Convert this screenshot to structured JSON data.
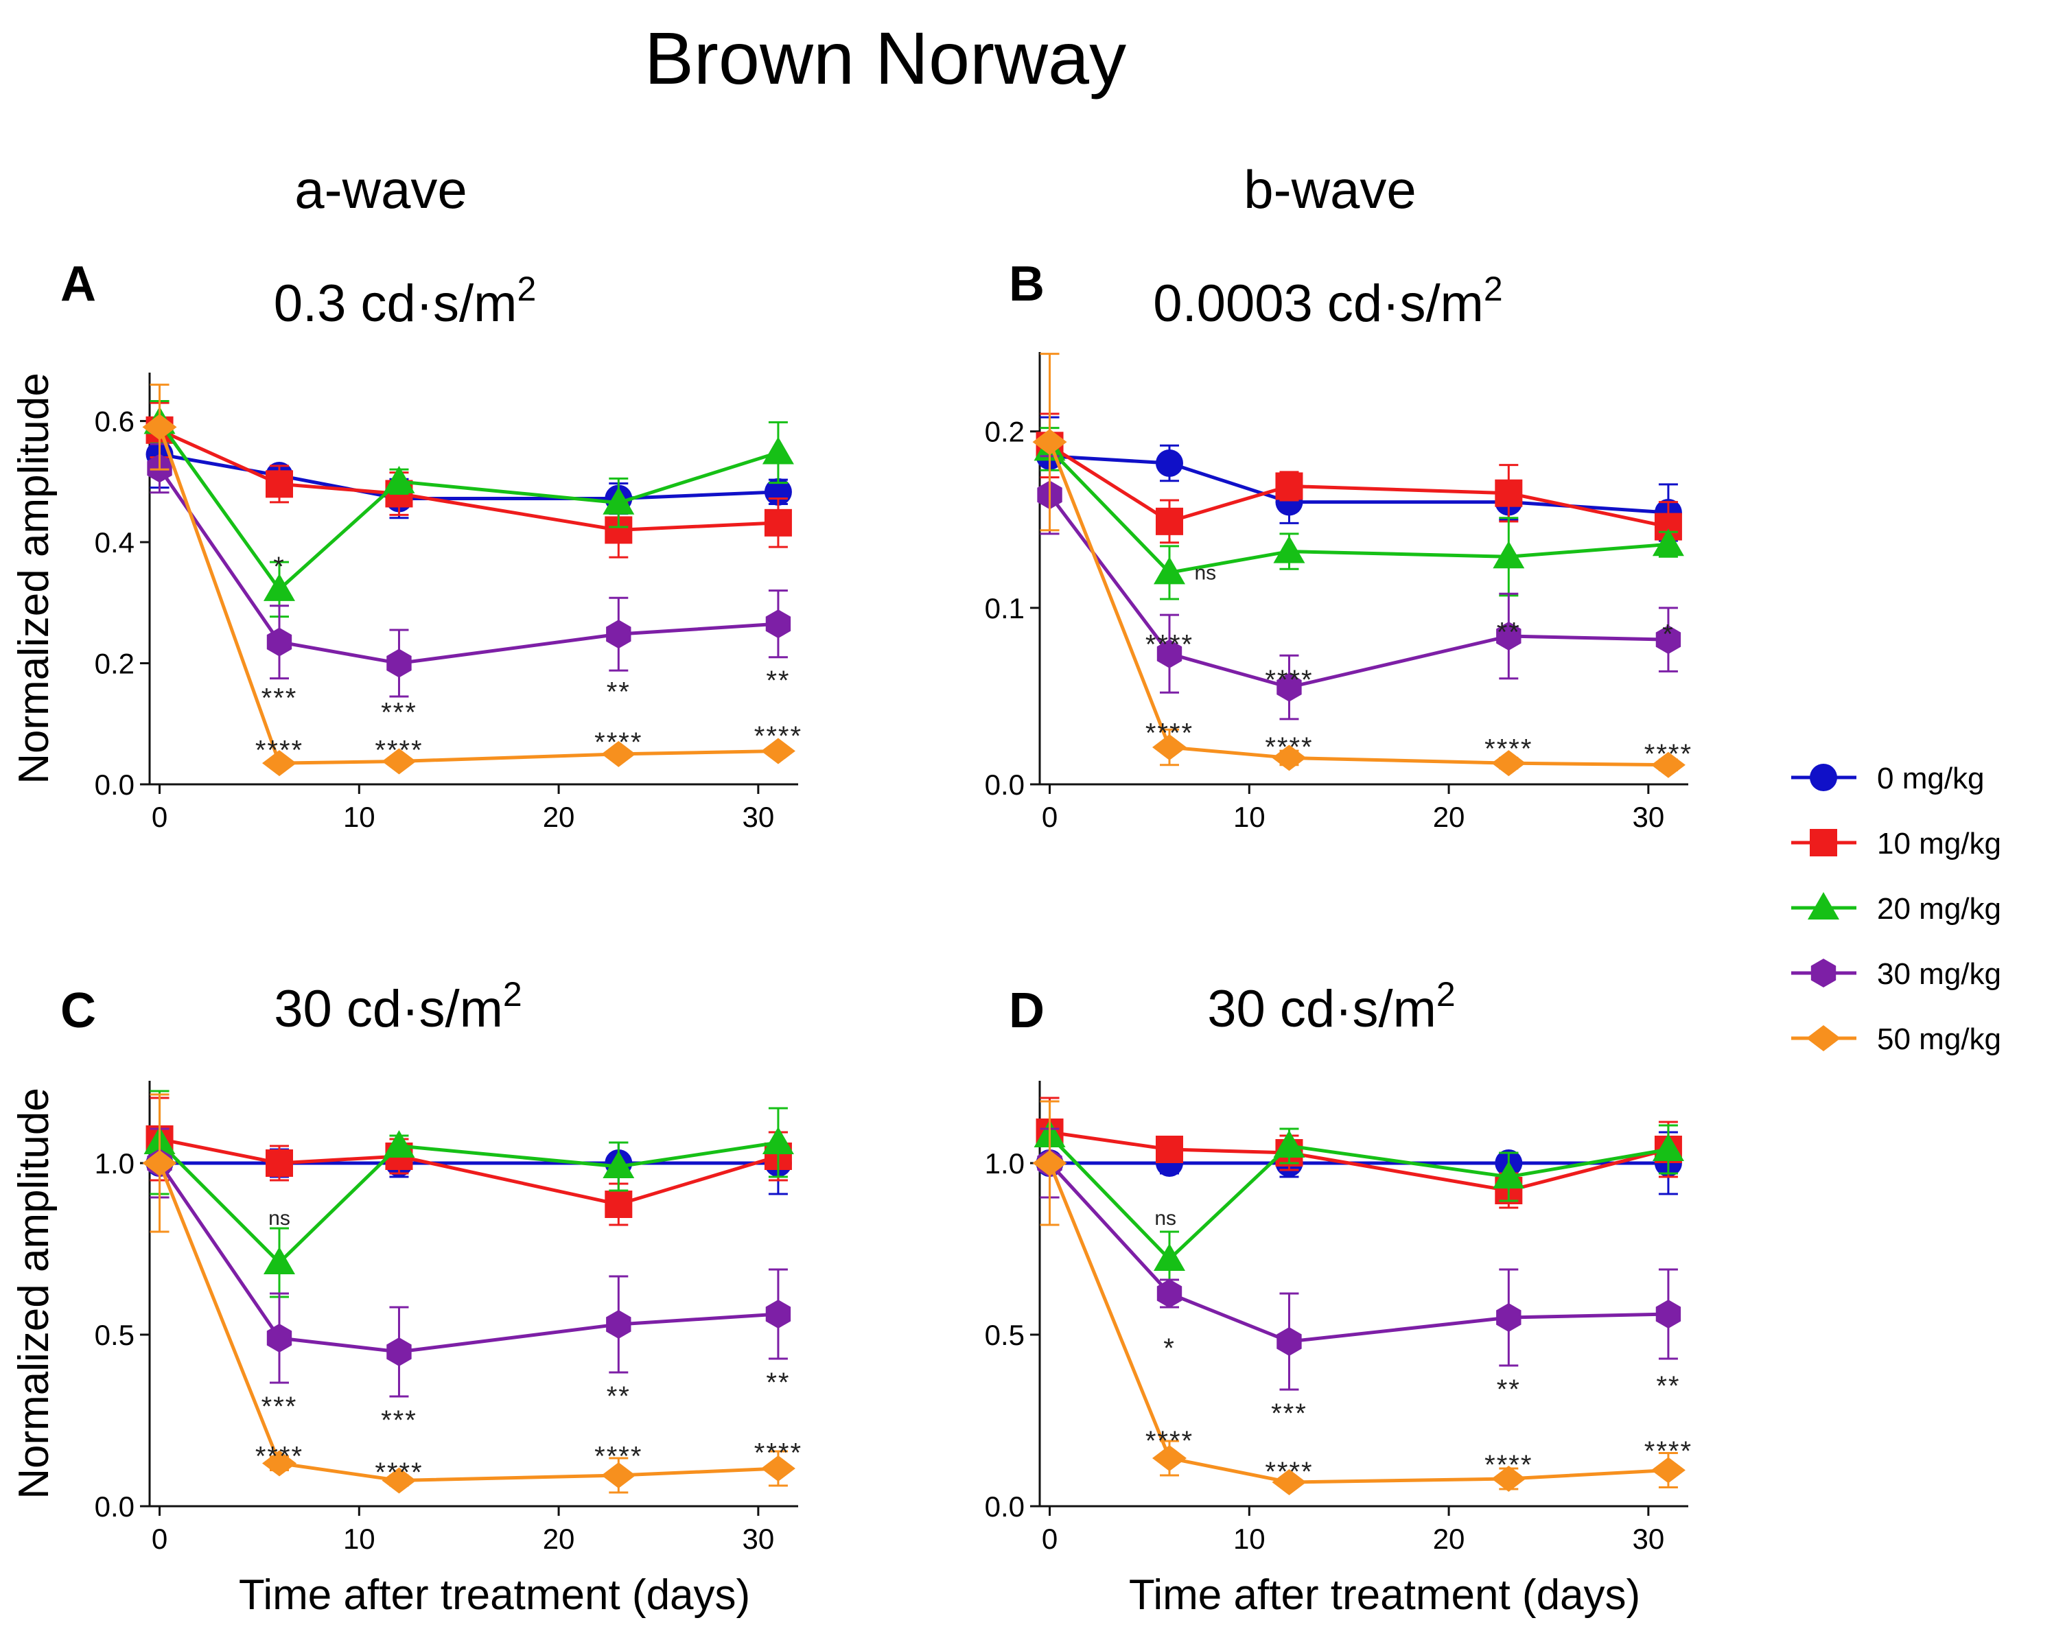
{
  "figure": {
    "title": "Brown Norway",
    "col_titles": [
      "a-wave",
      "b-wave"
    ]
  },
  "legend": {
    "items": [
      {
        "label": "0 mg/kg",
        "color": "#1010c8",
        "marker": "circle"
      },
      {
        "label": "10 mg/kg",
        "color": "#ee1c1c",
        "marker": "square"
      },
      {
        "label": "20 mg/kg",
        "color": "#16c016",
        "marker": "triangle"
      },
      {
        "label": "30 mg/kg",
        "color": "#7d1fa6",
        "marker": "hexagon"
      },
      {
        "label": "50 mg/kg",
        "color": "#f7901e",
        "marker": "diamond"
      }
    ]
  },
  "chart_data": [
    {
      "id": "A",
      "type": "line",
      "title": "0.3 cd·s/m",
      "title_sup": "2",
      "xlabel": "",
      "ylabel": "Normalized amplitude",
      "xlim": [
        -0.5,
        32
      ],
      "ylim": [
        0,
        0.68
      ],
      "xticks": [
        0,
        10,
        20,
        30
      ],
      "yticks": [
        0.0,
        0.2,
        0.4,
        0.6
      ],
      "ytick_labels": [
        "0.0",
        "0.2",
        "0.4",
        "0.6"
      ],
      "x": [
        0,
        6,
        12,
        23,
        31
      ],
      "series": [
        {
          "name": "0 mg/kg",
          "values": [
            0.545,
            0.51,
            0.472,
            0.472,
            0.483
          ],
          "err": [
            0.055,
            0.012,
            0.032,
            0.025,
            0.02
          ]
        },
        {
          "name": "10 mg/kg",
          "values": [
            0.585,
            0.496,
            0.48,
            0.42,
            0.432
          ],
          "err": [
            0.045,
            0.03,
            0.035,
            0.045,
            0.04
          ]
        },
        {
          "name": "20 mg/kg",
          "values": [
            0.598,
            0.322,
            0.5,
            0.465,
            0.548
          ],
          "err": [
            0.035,
            0.045,
            0.02,
            0.04,
            0.05
          ]
        },
        {
          "name": "30 mg/kg",
          "values": [
            0.522,
            0.235,
            0.2,
            0.248,
            0.265
          ],
          "err": [
            0.04,
            0.06,
            0.055,
            0.06,
            0.055
          ]
        },
        {
          "name": "50 mg/kg",
          "values": [
            0.59,
            0.035,
            0.038,
            0.05,
            0.055
          ],
          "err": [
            0.07,
            0.006,
            0.006,
            0.006,
            0.006
          ]
        }
      ],
      "annotations": [
        {
          "x": 6,
          "y": 0.365,
          "text": "*",
          "color": "#222"
        },
        {
          "x": 6,
          "y": 0.148,
          "text": "***",
          "color": "#222"
        },
        {
          "x": 12,
          "y": 0.124,
          "text": "***",
          "color": "#222"
        },
        {
          "x": 23,
          "y": 0.158,
          "text": "**",
          "color": "#222"
        },
        {
          "x": 31,
          "y": 0.177,
          "text": "**",
          "color": "#222"
        },
        {
          "x": 6,
          "y": 0.062,
          "text": "****",
          "color": "#222"
        },
        {
          "x": 12,
          "y": 0.062,
          "text": "****",
          "color": "#222"
        },
        {
          "x": 23,
          "y": 0.075,
          "text": "****",
          "color": "#222"
        },
        {
          "x": 31,
          "y": 0.085,
          "text": "****",
          "color": "#222"
        }
      ]
    },
    {
      "id": "B",
      "type": "line",
      "title": "0.0003 cd·s/m",
      "title_sup": "2",
      "xlabel": "",
      "ylabel": "",
      "xlim": [
        -0.5,
        32
      ],
      "ylim": [
        0,
        0.245
      ],
      "xticks": [
        0,
        10,
        20,
        30
      ],
      "yticks": [
        0.0,
        0.1,
        0.2
      ],
      "ytick_labels": [
        "0.0",
        "0.1",
        "0.2"
      ],
      "x": [
        0,
        6,
        12,
        23,
        31
      ],
      "series": [
        {
          "name": "0 mg/kg",
          "values": [
            0.186,
            0.182,
            0.16,
            0.16,
            0.154
          ],
          "err": [
            0.022,
            0.01,
            0.012,
            0.01,
            0.016
          ]
        },
        {
          "name": "10 mg/kg",
          "values": [
            0.192,
            0.149,
            0.169,
            0.165,
            0.146
          ],
          "err": [
            0.018,
            0.012,
            0.008,
            0.016,
            0.014
          ]
        },
        {
          "name": "20 mg/kg",
          "values": [
            0.19,
            0.12,
            0.132,
            0.129,
            0.136
          ],
          "err": [
            0.012,
            0.015,
            0.01,
            0.022,
            0.007
          ]
        },
        {
          "name": "30 mg/kg",
          "values": [
            0.164,
            0.074,
            0.055,
            0.084,
            0.082
          ],
          "err": [
            0.022,
            0.022,
            0.018,
            0.024,
            0.018
          ]
        },
        {
          "name": "50 mg/kg",
          "values": [
            0.194,
            0.021,
            0.015,
            0.012,
            0.011
          ],
          "err": [
            0.05,
            0.01,
            0.004,
            0.003,
            0.003
          ]
        }
      ],
      "annotations": [
        {
          "x": 7.8,
          "y": 0.116,
          "text": "ns",
          "color": "#222"
        },
        {
          "x": 6,
          "y": 0.081,
          "text": "****",
          "color": "#222"
        },
        {
          "x": 12,
          "y": 0.061,
          "text": "****",
          "color": "#222"
        },
        {
          "x": 23,
          "y": 0.088,
          "text": "**",
          "color": "#222"
        },
        {
          "x": 31,
          "y": 0.087,
          "text": "*",
          "color": "#222"
        },
        {
          "x": 6,
          "y": 0.031,
          "text": "****",
          "color": "#222"
        },
        {
          "x": 12,
          "y": 0.023,
          "text": "****",
          "color": "#222"
        },
        {
          "x": 23,
          "y": 0.022,
          "text": "****",
          "color": "#222"
        },
        {
          "x": 31,
          "y": 0.019,
          "text": "****",
          "color": "#222"
        }
      ]
    },
    {
      "id": "C",
      "type": "line",
      "title": "30 cd·s/m",
      "title_sup": "2",
      "xlabel": "Time after treatment (days)",
      "ylabel": "Normalized amplitude",
      "xlim": [
        -0.5,
        32
      ],
      "ylim": [
        0,
        1.24
      ],
      "xticks": [
        0,
        10,
        20,
        30
      ],
      "yticks": [
        0.0,
        0.5,
        1.0
      ],
      "ytick_labels": [
        "0.0",
        "0.5",
        "1.0"
      ],
      "x": [
        0,
        6,
        12,
        23,
        31
      ],
      "series": [
        {
          "name": "0 mg/kg",
          "values": [
            1.0,
            1.0,
            1.0,
            1.0,
            1.0
          ],
          "err": [
            0.1,
            0.04,
            0.04,
            0.06,
            0.09
          ]
        },
        {
          "name": "10 mg/kg",
          "values": [
            1.07,
            1.0,
            1.02,
            0.88,
            1.02
          ],
          "err": [
            0.12,
            0.05,
            0.05,
            0.06,
            0.07
          ]
        },
        {
          "name": "20 mg/kg",
          "values": [
            1.06,
            0.71,
            1.05,
            0.99,
            1.06
          ],
          "err": [
            0.15,
            0.1,
            0.03,
            0.07,
            0.1
          ]
        },
        {
          "name": "30 mg/kg",
          "values": [
            1.0,
            0.49,
            0.45,
            0.53,
            0.56
          ],
          "err": [
            0.1,
            0.13,
            0.13,
            0.14,
            0.13
          ]
        },
        {
          "name": "50 mg/kg",
          "values": [
            1.0,
            0.125,
            0.075,
            0.09,
            0.11
          ],
          "err": [
            0.2,
            0.02,
            0.015,
            0.05,
            0.05
          ]
        }
      ],
      "annotations": [
        {
          "x": 6,
          "y": 0.82,
          "text": "ns",
          "color": "#222"
        },
        {
          "x": 6,
          "y": 0.3,
          "text": "***",
          "color": "#222"
        },
        {
          "x": 12,
          "y": 0.26,
          "text": "***",
          "color": "#222"
        },
        {
          "x": 23,
          "y": 0.33,
          "text": "**",
          "color": "#222"
        },
        {
          "x": 31,
          "y": 0.37,
          "text": "**",
          "color": "#222"
        },
        {
          "x": 6,
          "y": 0.155,
          "text": "****",
          "color": "#222"
        },
        {
          "x": 12,
          "y": 0.108,
          "text": "****",
          "color": "#222"
        },
        {
          "x": 23,
          "y": 0.155,
          "text": "****",
          "color": "#222"
        },
        {
          "x": 31,
          "y": 0.165,
          "text": "****",
          "color": "#222"
        }
      ]
    },
    {
      "id": "D",
      "type": "line",
      "title": "30 cd·s/m",
      "title_sup": "2",
      "xlabel": "Time after treatment (days)",
      "ylabel": "",
      "xlim": [
        -0.5,
        32
      ],
      "ylim": [
        0,
        1.24
      ],
      "xticks": [
        0,
        10,
        20,
        30
      ],
      "yticks": [
        0.0,
        0.5,
        1.0
      ],
      "ytick_labels": [
        "0.0",
        "0.5",
        "1.0"
      ],
      "x": [
        0,
        6,
        12,
        23,
        31
      ],
      "series": [
        {
          "name": "0 mg/kg",
          "values": [
            1.0,
            1.0,
            1.0,
            1.0,
            1.0
          ],
          "err": [
            0.1,
            0.03,
            0.04,
            0.03,
            0.09
          ]
        },
        {
          "name": "10 mg/kg",
          "values": [
            1.09,
            1.04,
            1.03,
            0.92,
            1.04
          ],
          "err": [
            0.1,
            0.03,
            0.05,
            0.05,
            0.08
          ]
        },
        {
          "name": "20 mg/kg",
          "values": [
            1.08,
            0.72,
            1.05,
            0.96,
            1.04
          ],
          "err": [
            0.1,
            0.08,
            0.05,
            0.07,
            0.07
          ]
        },
        {
          "name": "30 mg/kg",
          "values": [
            1.0,
            0.62,
            0.48,
            0.55,
            0.56
          ],
          "err": [
            0.1,
            0.04,
            0.14,
            0.14,
            0.13
          ]
        },
        {
          "name": "50 mg/kg",
          "values": [
            1.0,
            0.14,
            0.07,
            0.08,
            0.105
          ],
          "err": [
            0.18,
            0.05,
            0.012,
            0.03,
            0.05
          ]
        }
      ],
      "annotations": [
        {
          "x": 5.8,
          "y": 0.82,
          "text": "ns",
          "color": "#222"
        },
        {
          "x": 6,
          "y": 0.47,
          "text": "*",
          "color": "#222"
        },
        {
          "x": 12,
          "y": 0.28,
          "text": "***",
          "color": "#222"
        },
        {
          "x": 23,
          "y": 0.35,
          "text": "**",
          "color": "#222"
        },
        {
          "x": 31,
          "y": 0.36,
          "text": "**",
          "color": "#222"
        },
        {
          "x": 6,
          "y": 0.2,
          "text": "****",
          "color": "#222"
        },
        {
          "x": 12,
          "y": 0.11,
          "text": "****",
          "color": "#222"
        },
        {
          "x": 23,
          "y": 0.13,
          "text": "****",
          "color": "#222"
        },
        {
          "x": 31,
          "y": 0.17,
          "text": "****",
          "color": "#222"
        }
      ]
    }
  ]
}
